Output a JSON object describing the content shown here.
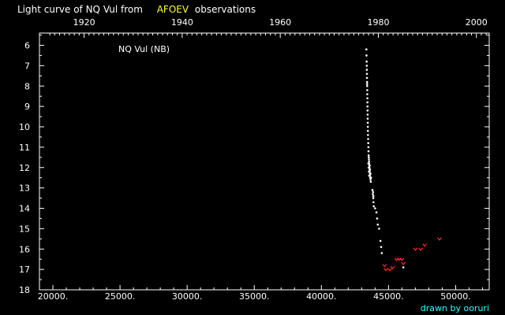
{
  "header": {
    "title_prefix": "Light curve of NQ Vul from",
    "source": "AFOEV",
    "title_suffix": "observations"
  },
  "star_label": "NQ Vul (NB)",
  "credit": "drawn by ooruri",
  "colors": {
    "background": "#000000",
    "axis": "#ffffff",
    "positive": "#ffffff",
    "fainter_than": "#ff2a2a",
    "source": "#ffff33",
    "credit": "#33ffff"
  },
  "chart_data": {
    "type": "scatter",
    "x_unit": "Julian Day - 2400000",
    "xlim": [
      19000,
      52500
    ],
    "ylim": [
      18,
      5.4
    ],
    "y_inverted": true,
    "top_axis": {
      "ticks": [
        1920,
        1940,
        1960,
        1980,
        2000
      ]
    },
    "x_ticks": [
      20000,
      25000,
      30000,
      35000,
      40000,
      45000,
      50000
    ],
    "x_tick_labels": [
      "20000.",
      "25000.",
      "30000.",
      "35000.",
      "40000.",
      "45000.",
      "50000."
    ],
    "y_ticks": [
      6,
      7,
      8,
      9,
      10,
      11,
      12,
      13,
      14,
      15,
      16,
      17,
      18
    ],
    "series": [
      {
        "kind": "positive",
        "points": [
          [
            43350,
            6.2
          ],
          [
            43360,
            6.5
          ],
          [
            43370,
            6.8
          ],
          [
            43380,
            7.0
          ],
          [
            43385,
            7.2
          ],
          [
            43390,
            7.4
          ],
          [
            43395,
            7.6
          ],
          [
            43400,
            7.8
          ],
          [
            43405,
            7.9
          ],
          [
            43410,
            8.0
          ],
          [
            43415,
            8.2
          ],
          [
            43420,
            8.4
          ],
          [
            43425,
            8.6
          ],
          [
            43430,
            8.8
          ],
          [
            43435,
            9.0
          ],
          [
            43440,
            9.2
          ],
          [
            43445,
            9.4
          ],
          [
            43450,
            9.6
          ],
          [
            43455,
            9.8
          ],
          [
            43460,
            10.0
          ],
          [
            43465,
            10.2
          ],
          [
            43470,
            10.4
          ],
          [
            43480,
            10.6
          ],
          [
            43490,
            10.8
          ],
          [
            43500,
            11.0
          ],
          [
            43510,
            11.2
          ],
          [
            43520,
            11.4
          ],
          [
            43530,
            11.5
          ],
          [
            43540,
            11.6
          ],
          [
            43550,
            11.7
          ],
          [
            43560,
            11.8
          ],
          [
            43570,
            11.9
          ],
          [
            43580,
            12.0
          ],
          [
            43590,
            12.1
          ],
          [
            43600,
            12.2
          ],
          [
            43610,
            12.3
          ],
          [
            43620,
            12.4
          ],
          [
            43640,
            12.5
          ],
          [
            43660,
            12.6
          ],
          [
            43680,
            12.7
          ],
          [
            43500,
            11.8
          ],
          [
            43520,
            12.0
          ],
          [
            43540,
            12.2
          ],
          [
            43560,
            12.4
          ],
          [
            43600,
            11.9
          ],
          [
            43620,
            12.1
          ],
          [
            43660,
            12.3
          ],
          [
            43700,
            12.5
          ],
          [
            43800,
            13.1
          ],
          [
            43830,
            13.3
          ],
          [
            43860,
            13.5
          ],
          [
            43880,
            13.7
          ],
          [
            43900,
            13.9
          ],
          [
            43850,
            13.2
          ],
          [
            43870,
            13.4
          ],
          [
            44000,
            14.0
          ],
          [
            44100,
            14.2
          ],
          [
            44150,
            14.5
          ],
          [
            44200,
            14.8
          ],
          [
            44300,
            15.0
          ],
          [
            44400,
            15.6
          ],
          [
            44450,
            15.9
          ],
          [
            44500,
            16.2
          ],
          [
            46100,
            16.9
          ]
        ]
      },
      {
        "kind": "fainter_than",
        "points": [
          [
            44700,
            16.8
          ],
          [
            44800,
            17.0
          ],
          [
            45100,
            17.0
          ],
          [
            45300,
            16.9
          ],
          [
            45600,
            16.5
          ],
          [
            45800,
            16.5
          ],
          [
            46000,
            16.5
          ],
          [
            46100,
            16.7
          ],
          [
            47000,
            16.0
          ],
          [
            47400,
            16.0
          ],
          [
            47700,
            15.8
          ],
          [
            48800,
            15.5
          ]
        ]
      }
    ]
  }
}
